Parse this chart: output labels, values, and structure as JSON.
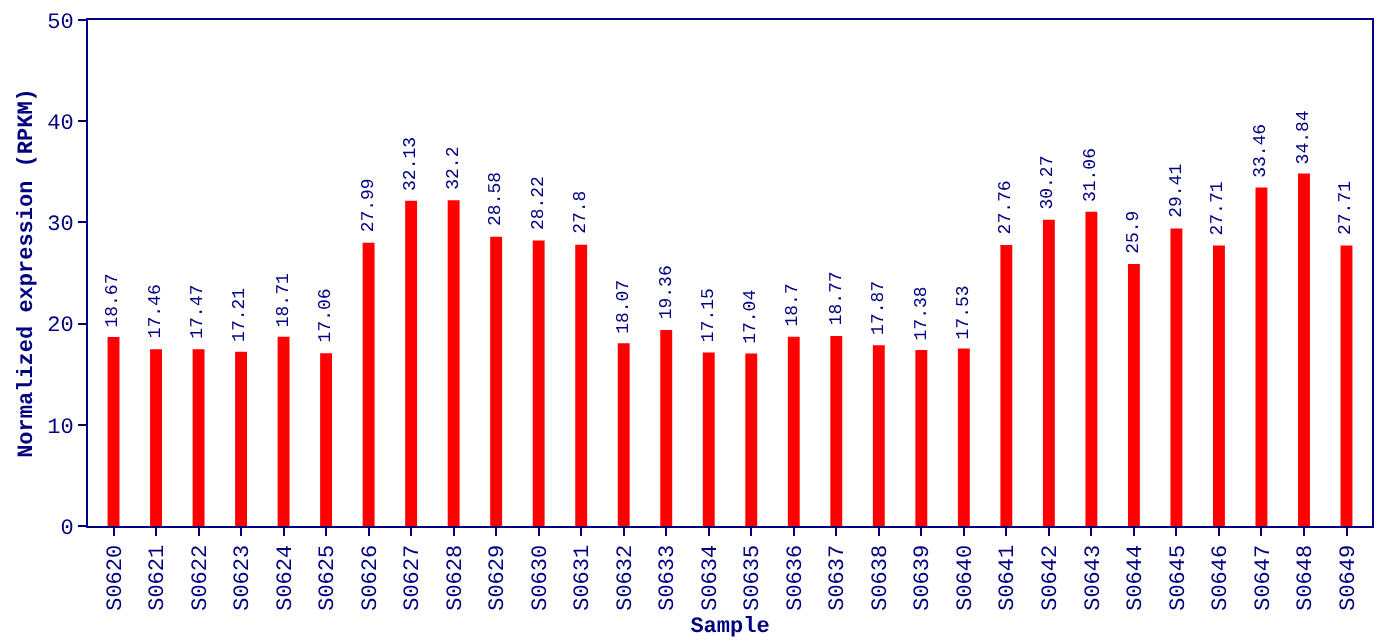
{
  "chart_data": {
    "type": "bar",
    "xlabel": "Sample",
    "ylabel": "Normalized expression (RPKM)",
    "categories": [
      "S0620",
      "S0621",
      "S0622",
      "S0623",
      "S0624",
      "S0625",
      "S0626",
      "S0627",
      "S0628",
      "S0629",
      "S0630",
      "S0631",
      "S0632",
      "S0633",
      "S0634",
      "S0635",
      "S0636",
      "S0637",
      "S0638",
      "S0639",
      "S0640",
      "S0641",
      "S0642",
      "S0643",
      "S0644",
      "S0645",
      "S0646",
      "S0647",
      "S0648",
      "S0649"
    ],
    "values": [
      18.67,
      17.46,
      17.47,
      17.21,
      18.71,
      17.06,
      27.99,
      32.13,
      32.2,
      28.58,
      28.22,
      27.8,
      18.07,
      19.36,
      17.15,
      17.04,
      18.7,
      18.77,
      17.87,
      17.38,
      17.53,
      27.76,
      30.27,
      31.06,
      25.9,
      29.41,
      27.71,
      33.46,
      34.84,
      27.71
    ],
    "color": "#ff0000",
    "ylim": [
      0,
      50
    ],
    "yticks": [
      0,
      10,
      20,
      30,
      40,
      50
    ],
    "data_labels": true
  }
}
